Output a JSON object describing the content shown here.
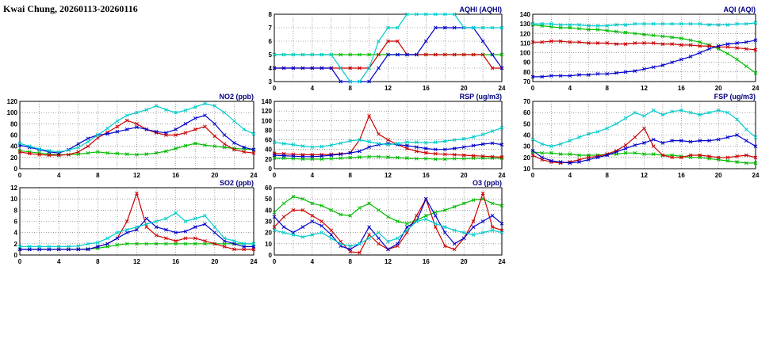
{
  "header": {
    "title": "Kwai Chung, 20260113-20260116"
  },
  "chart_data": [
    {
      "id": "aqhi",
      "type": "line",
      "title": "AQHI (AQHI)",
      "xlim": [
        0,
        24
      ],
      "xticks": [
        0,
        4,
        8,
        12,
        16,
        20,
        24
      ],
      "ylim": [
        3,
        8
      ],
      "yticks": [
        3,
        4,
        5,
        6,
        7,
        8
      ],
      "grid": true,
      "legend": "none",
      "x": [
        0,
        1,
        2,
        3,
        4,
        5,
        6,
        7,
        8,
        9,
        10,
        11,
        12,
        13,
        14,
        15,
        16,
        17,
        18,
        19,
        20,
        21,
        22,
        23,
        24
      ],
      "series": [
        {
          "name": "green",
          "color": "#00bb00",
          "values": [
            5,
            5,
            5,
            5,
            5,
            5,
            5,
            5,
            5,
            5,
            5,
            5,
            5,
            5,
            5,
            5,
            5,
            5,
            5,
            5,
            5,
            5,
            5,
            5,
            5
          ]
        },
        {
          "name": "red",
          "color": "#cc0000",
          "values": [
            4,
            4,
            4,
            4,
            4,
            4,
            4,
            4,
            4,
            4,
            4,
            5,
            6,
            6,
            5,
            5,
            5,
            5,
            5,
            5,
            5,
            5,
            5,
            4,
            4
          ]
        },
        {
          "name": "blue",
          "color": "#0000cc",
          "values": [
            4,
            4,
            4,
            4,
            4,
            4,
            4,
            3,
            3,
            3,
            3,
            4,
            5,
            5,
            5,
            5,
            6,
            7,
            7,
            7,
            7,
            7,
            6,
            5,
            4
          ]
        },
        {
          "name": "cyan",
          "color": "#00cccc",
          "values": [
            5,
            5,
            5,
            5,
            5,
            5,
            5,
            4,
            3,
            3,
            4,
            6,
            7,
            7,
            8,
            8,
            8,
            8,
            8,
            8,
            7,
            7,
            7,
            7,
            7
          ]
        }
      ]
    },
    {
      "id": "aqi",
      "type": "line",
      "title": "AQI (AQI)",
      "xlim": [
        0,
        24
      ],
      "xticks": [
        0,
        4,
        8,
        12,
        16,
        20,
        24
      ],
      "ylim": [
        70,
        140
      ],
      "yticks": [
        70,
        80,
        90,
        100,
        110,
        120,
        130,
        140
      ],
      "grid": true,
      "legend": "none",
      "x": [
        0,
        1,
        2,
        3,
        4,
        5,
        6,
        7,
        8,
        9,
        10,
        11,
        12,
        13,
        14,
        15,
        16,
        17,
        18,
        19,
        20,
        21,
        22,
        23,
        24
      ],
      "series": [
        {
          "name": "green",
          "color": "#00bb00",
          "values": [
            129,
            128,
            127,
            126,
            126,
            125,
            124,
            124,
            123,
            122,
            121,
            120,
            119,
            118,
            117,
            116,
            115,
            113,
            111,
            108,
            104,
            99,
            93,
            86,
            79
          ]
        },
        {
          "name": "red",
          "color": "#cc0000",
          "values": [
            111,
            111,
            112,
            112,
            111,
            111,
            110,
            110,
            110,
            109,
            109,
            110,
            110,
            110,
            109,
            109,
            108,
            108,
            107,
            107,
            106,
            106,
            105,
            104,
            103
          ]
        },
        {
          "name": "blue",
          "color": "#0000cc",
          "values": [
            75,
            75,
            76,
            76,
            76,
            77,
            77,
            78,
            78,
            79,
            80,
            81,
            83,
            85,
            87,
            90,
            93,
            96,
            100,
            104,
            107,
            109,
            110,
            111,
            113
          ]
        },
        {
          "name": "cyan",
          "color": "#00cccc",
          "values": [
            130,
            130,
            130,
            129,
            129,
            129,
            128,
            128,
            128,
            129,
            129,
            130,
            130,
            130,
            130,
            130,
            130,
            130,
            130,
            129,
            129,
            129,
            130,
            130,
            131
          ]
        }
      ]
    },
    {
      "id": "no2",
      "type": "line",
      "title": "NO2 (ppb)",
      "xlim": [
        0,
        24
      ],
      "xticks": [
        0,
        4,
        8,
        12,
        16,
        20,
        24
      ],
      "ylim": [
        0,
        120
      ],
      "yticks": [
        0,
        20,
        40,
        60,
        80,
        100,
        120
      ],
      "grid": true,
      "legend": "none",
      "x": [
        0,
        1,
        2,
        3,
        4,
        5,
        6,
        7,
        8,
        9,
        10,
        11,
        12,
        13,
        14,
        15,
        16,
        17,
        18,
        19,
        20,
        21,
        22,
        23,
        24
      ],
      "series": [
        {
          "name": "green",
          "color": "#00bb00",
          "values": [
            32,
            30,
            28,
            26,
            25,
            25,
            26,
            28,
            30,
            28,
            27,
            26,
            25,
            26,
            28,
            31,
            36,
            41,
            45,
            42,
            40,
            38,
            36,
            35,
            34
          ]
        },
        {
          "name": "red",
          "color": "#cc0000",
          "values": [
            30,
            27,
            25,
            24,
            24,
            25,
            30,
            40,
            55,
            65,
            75,
            86,
            80,
            70,
            64,
            60,
            60,
            64,
            70,
            75,
            58,
            44,
            34,
            30,
            28
          ]
        },
        {
          "name": "blue",
          "color": "#0000cc",
          "values": [
            42,
            38,
            34,
            30,
            28,
            34,
            44,
            54,
            60,
            62,
            66,
            70,
            74,
            70,
            66,
            64,
            70,
            80,
            90,
            95,
            80,
            60,
            46,
            38,
            34
          ]
        },
        {
          "name": "cyan",
          "color": "#00cccc",
          "values": [
            45,
            40,
            35,
            32,
            30,
            33,
            38,
            48,
            60,
            72,
            85,
            95,
            100,
            105,
            112,
            105,
            100,
            104,
            110,
            116,
            112,
            100,
            85,
            70,
            62
          ]
        }
      ]
    },
    {
      "id": "rsp",
      "type": "line",
      "title": "RSP (ug/m3)",
      "xlim": [
        0,
        24
      ],
      "xticks": [
        0,
        4,
        8,
        12,
        16,
        20,
        24
      ],
      "ylim": [
        0,
        140
      ],
      "yticks": [
        0,
        20,
        40,
        60,
        80,
        100,
        120,
        140
      ],
      "grid": true,
      "legend": "none",
      "x": [
        0,
        1,
        2,
        3,
        4,
        5,
        6,
        7,
        8,
        9,
        10,
        11,
        12,
        13,
        14,
        15,
        16,
        17,
        18,
        19,
        20,
        21,
        22,
        23,
        24
      ],
      "series": [
        {
          "name": "green",
          "color": "#00bb00",
          "values": [
            22,
            22,
            21,
            20,
            20,
            20,
            21,
            22,
            23,
            24,
            25,
            25,
            24,
            23,
            22,
            21,
            21,
            20,
            20,
            21,
            21,
            22,
            22,
            22,
            22
          ]
        },
        {
          "name": "red",
          "color": "#cc0000",
          "values": [
            32,
            31,
            30,
            29,
            29,
            29,
            30,
            31,
            33,
            60,
            110,
            72,
            60,
            50,
            42,
            36,
            33,
            31,
            30,
            29,
            28,
            27,
            26,
            25,
            24
          ]
        },
        {
          "name": "blue",
          "color": "#0000cc",
          "values": [
            28,
            27,
            26,
            25,
            25,
            26,
            28,
            30,
            33,
            36,
            45,
            50,
            52,
            50,
            48,
            45,
            42,
            40,
            40,
            42,
            45,
            48,
            51,
            53,
            50
          ]
        },
        {
          "name": "cyan",
          "color": "#00cccc",
          "values": [
            55,
            52,
            50,
            47,
            45,
            46,
            49,
            53,
            58,
            60,
            56,
            52,
            50,
            52,
            55,
            55,
            54,
            55,
            57,
            60,
            62,
            66,
            71,
            78,
            85
          ]
        }
      ]
    },
    {
      "id": "fsp",
      "type": "line",
      "title": "FSP (ug/m3)",
      "xlim": [
        0,
        24
      ],
      "xticks": [
        0,
        4,
        8,
        12,
        16,
        20,
        24
      ],
      "ylim": [
        10,
        70
      ],
      "yticks": [
        10,
        20,
        30,
        40,
        50,
        60,
        70
      ],
      "grid": true,
      "legend": "none",
      "x": [
        0,
        1,
        2,
        3,
        4,
        5,
        6,
        7,
        8,
        9,
        10,
        11,
        12,
        13,
        14,
        15,
        16,
        17,
        18,
        19,
        20,
        21,
        22,
        23,
        24
      ],
      "series": [
        {
          "name": "green",
          "color": "#00bb00",
          "values": [
            25,
            24,
            24,
            23,
            23,
            22,
            22,
            22,
            23,
            23,
            24,
            24,
            23,
            23,
            22,
            22,
            21,
            20,
            20,
            19,
            18,
            17,
            16,
            15,
            15
          ]
        },
        {
          "name": "red",
          "color": "#cc0000",
          "values": [
            22,
            18,
            16,
            15,
            16,
            18,
            20,
            21,
            23,
            26,
            31,
            38,
            46,
            30,
            22,
            20,
            20,
            22,
            22,
            21,
            20,
            20,
            21,
            22,
            20
          ]
        },
        {
          "name": "blue",
          "color": "#0000cc",
          "values": [
            26,
            20,
            17,
            16,
            15,
            16,
            18,
            20,
            22,
            25,
            28,
            31,
            33,
            36,
            33,
            35,
            35,
            34,
            35,
            35,
            36,
            38,
            40,
            35,
            30
          ]
        },
        {
          "name": "cyan",
          "color": "#00cccc",
          "values": [
            36,
            32,
            30,
            32,
            35,
            38,
            41,
            43,
            46,
            50,
            55,
            60,
            57,
            62,
            58,
            61,
            62,
            60,
            58,
            60,
            62,
            60,
            54,
            45,
            38
          ]
        }
      ]
    },
    {
      "id": "so2",
      "type": "line",
      "title": "SO2 (ppb)",
      "xlim": [
        0,
        24
      ],
      "xticks": [
        0,
        4,
        8,
        12,
        16,
        20,
        24
      ],
      "ylim": [
        0,
        12
      ],
      "yticks": [
        0,
        2,
        4,
        6,
        8,
        10,
        12
      ],
      "grid": true,
      "legend": "none",
      "x": [
        0,
        1,
        2,
        3,
        4,
        5,
        6,
        7,
        8,
        9,
        10,
        11,
        12,
        13,
        14,
        15,
        16,
        17,
        18,
        19,
        20,
        21,
        22,
        23,
        24
      ],
      "series": [
        {
          "name": "green",
          "color": "#00bb00",
          "values": [
            1,
            1,
            1,
            1,
            1,
            1,
            1,
            1.1,
            1.2,
            1.5,
            1.8,
            2,
            2,
            2,
            2,
            2,
            2,
            2,
            2,
            2,
            2,
            2,
            2,
            2,
            2
          ]
        },
        {
          "name": "red",
          "color": "#cc0000",
          "values": [
            1,
            1,
            1,
            1,
            1,
            1,
            1,
            1,
            1.5,
            2,
            3,
            6,
            11,
            5,
            3.5,
            3,
            2.5,
            3,
            3,
            2.5,
            2,
            1.5,
            1,
            1,
            1
          ]
        },
        {
          "name": "blue",
          "color": "#0000cc",
          "values": [
            1,
            1,
            1,
            1,
            1,
            1,
            1,
            1,
            1.5,
            2,
            3,
            4,
            4.5,
            6.5,
            5,
            4.5,
            4,
            4.2,
            5,
            5.5,
            4,
            2.5,
            2,
            1.5,
            1.5
          ]
        },
        {
          "name": "cyan",
          "color": "#00cccc",
          "values": [
            1.5,
            1.5,
            1.5,
            1.5,
            1.5,
            1.5,
            1.6,
            2,
            2.2,
            3,
            4,
            4.5,
            5,
            5.5,
            6,
            6.5,
            7.5,
            6,
            6.5,
            7,
            5,
            3,
            2.5,
            2,
            2
          ]
        }
      ]
    },
    {
      "id": "o3",
      "type": "line",
      "title": "O3 (ppb)",
      "xlim": [
        0,
        24
      ],
      "xticks": [
        0,
        4,
        8,
        12,
        16,
        20,
        24
      ],
      "ylim": [
        0,
        60
      ],
      "yticks": [
        0,
        10,
        20,
        30,
        40,
        50,
        60
      ],
      "grid": true,
      "legend": "none",
      "x": [
        0,
        1,
        2,
        3,
        4,
        5,
        6,
        7,
        8,
        9,
        10,
        11,
        12,
        13,
        14,
        15,
        16,
        17,
        18,
        19,
        20,
        21,
        22,
        23,
        24
      ],
      "series": [
        {
          "name": "green",
          "color": "#00bb00",
          "values": [
            38,
            46,
            52,
            50,
            46,
            44,
            40,
            36,
            35,
            42,
            46,
            40,
            34,
            30,
            28,
            31,
            35,
            38,
            40,
            43,
            46,
            49,
            50,
            46,
            44
          ]
        },
        {
          "name": "red",
          "color": "#cc0000",
          "values": [
            25,
            34,
            40,
            40,
            35,
            30,
            22,
            12,
            3,
            2,
            18,
            10,
            5,
            8,
            20,
            35,
            50,
            25,
            8,
            5,
            15,
            30,
            55,
            25,
            22
          ]
        },
        {
          "name": "blue",
          "color": "#0000cc",
          "values": [
            34,
            25,
            20,
            25,
            30,
            26,
            18,
            8,
            5,
            10,
            25,
            15,
            5,
            10,
            25,
            30,
            50,
            35,
            20,
            10,
            15,
            25,
            30,
            35,
            28
          ]
        },
        {
          "name": "cyan",
          "color": "#00cccc",
          "values": [
            22,
            20,
            18,
            16,
            18,
            20,
            15,
            10,
            8,
            10,
            15,
            20,
            12,
            15,
            22,
            30,
            32,
            28,
            25,
            22,
            20,
            18,
            20,
            22,
            20
          ]
        }
      ]
    }
  ]
}
